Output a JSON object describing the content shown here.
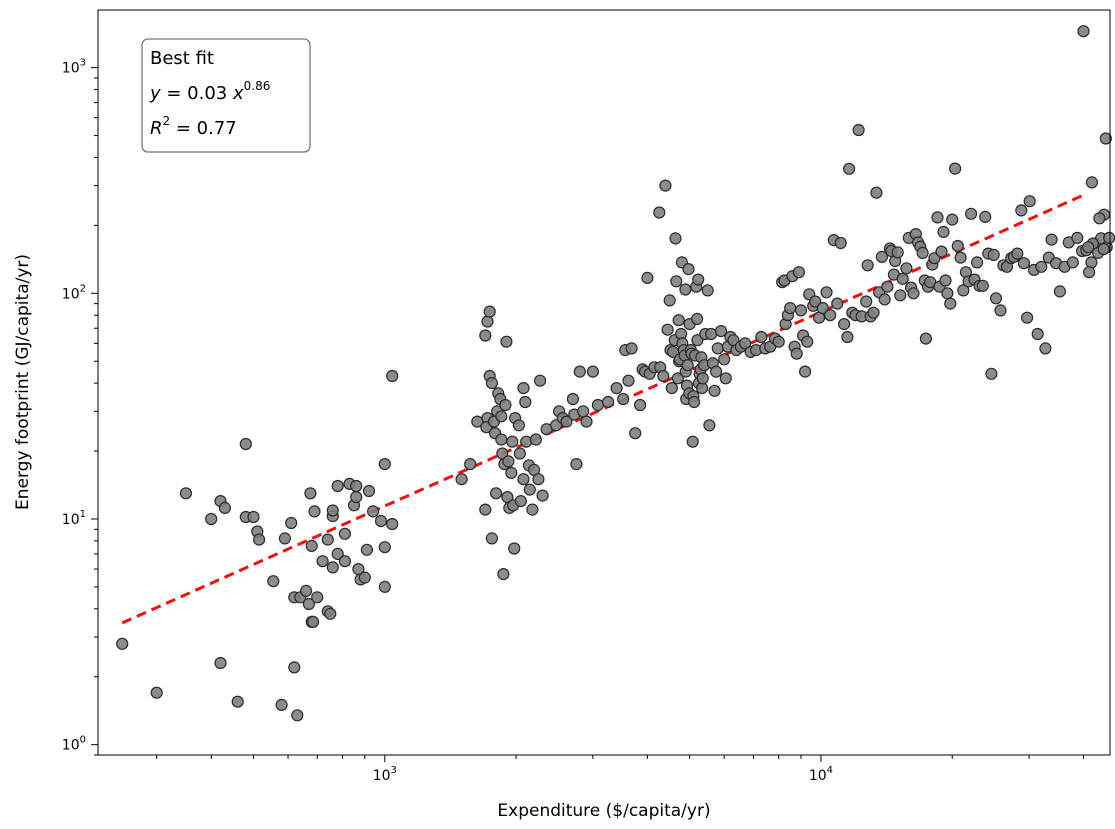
{
  "chart_data": {
    "type": "scatter",
    "xlabel": "Expenditure ($/capita/yr)",
    "ylabel": "Energy footprint (GJ/capita/yr)",
    "xscale": "log",
    "yscale": "log",
    "xlim": [
      220,
      46000
    ],
    "ylim": [
      0.9,
      1800
    ],
    "x_ticks": [
      {
        "value": 1000,
        "base": "10",
        "exp": "3"
      },
      {
        "value": 10000,
        "base": "10",
        "exp": "4"
      }
    ],
    "y_ticks": [
      {
        "value": 1,
        "base": "10",
        "exp": "0"
      },
      {
        "value": 10,
        "base": "10",
        "exp": "1"
      },
      {
        "value": 100,
        "base": "10",
        "exp": "2"
      },
      {
        "value": 1000,
        "base": "10",
        "exp": "3"
      }
    ],
    "grid": false,
    "marker_color": "#808080",
    "marker_edge_color": "#2b2b2b",
    "fit_color": "#ee1111",
    "annotation": {
      "line1": "Best fit",
      "eq_y": "y",
      "eq_eq": " = 0.03 ",
      "eq_x": "x",
      "eq_exp": "0.86",
      "r2_r": "R",
      "r2_exp": "2",
      "r2_val": " = 0.77"
    },
    "fit": {
      "coefficient": 0.03,
      "exponent": 0.86,
      "x_range": [
        250,
        40000
      ]
    },
    "points": [
      [
        250,
        2.8
      ],
      [
        300,
        1.7
      ],
      [
        350,
        13
      ],
      [
        400,
        10
      ],
      [
        420,
        12
      ],
      [
        430,
        11.2
      ],
      [
        420,
        2.3
      ],
      [
        460,
        1.55
      ],
      [
        480,
        10.2
      ],
      [
        500,
        10.2
      ],
      [
        510,
        8.8
      ],
      [
        515,
        8.1
      ],
      [
        480,
        21.5
      ],
      [
        555,
        5.3
      ],
      [
        590,
        8.2
      ],
      [
        610,
        9.6
      ],
      [
        620,
        4.5
      ],
      [
        640,
        4.5
      ],
      [
        620,
        2.2
      ],
      [
        580,
        1.5
      ],
      [
        630,
        1.35
      ],
      [
        660,
        4.8
      ],
      [
        670,
        4.2
      ],
      [
        680,
        3.5
      ],
      [
        685,
        3.5
      ],
      [
        700,
        4.5
      ],
      [
        675,
        13
      ],
      [
        690,
        10.8
      ],
      [
        680,
        7.6
      ],
      [
        720,
        6.5
      ],
      [
        740,
        8.1
      ],
      [
        740,
        3.9
      ],
      [
        750,
        3.8
      ],
      [
        760,
        6.1
      ],
      [
        780,
        7
      ],
      [
        760,
        10.3
      ],
      [
        760,
        10.9
      ],
      [
        780,
        14
      ],
      [
        810,
        6.5
      ],
      [
        810,
        8.6
      ],
      [
        830,
        14.3
      ],
      [
        860,
        14
      ],
      [
        850,
        11.5
      ],
      [
        870,
        6
      ],
      [
        860,
        12.5
      ],
      [
        880,
        5.4
      ],
      [
        900,
        5.5
      ],
      [
        910,
        7.3
      ],
      [
        920,
        13.3
      ],
      [
        940,
        10.8
      ],
      [
        980,
        9.8
      ],
      [
        1000,
        17.5
      ],
      [
        1000,
        7.5
      ],
      [
        1000,
        5
      ],
      [
        1040,
        9.5
      ],
      [
        1040,
        43
      ],
      [
        1500,
        15
      ],
      [
        1570,
        17.5
      ],
      [
        1630,
        27
      ],
      [
        1700,
        65
      ],
      [
        1720,
        75
      ],
      [
        1740,
        83
      ],
      [
        1720,
        28
      ],
      [
        1710,
        25.5
      ],
      [
        1700,
        11
      ],
      [
        1740,
        43
      ],
      [
        1760,
        40
      ],
      [
        1760,
        8.2
      ],
      [
        1780,
        27
      ],
      [
        1790,
        24
      ],
      [
        1800,
        13
      ],
      [
        1810,
        30
      ],
      [
        1820,
        36
      ],
      [
        1840,
        34
      ],
      [
        1850,
        28.5
      ],
      [
        1860,
        19.5
      ],
      [
        1850,
        22.5
      ],
      [
        1880,
        17.5
      ],
      [
        1870,
        5.7
      ],
      [
        1890,
        32
      ],
      [
        1900,
        61
      ],
      [
        1910,
        12.5
      ],
      [
        1920,
        18
      ],
      [
        1930,
        11.2
      ],
      [
        1950,
        16
      ],
      [
        1960,
        22
      ],
      [
        1970,
        11.5
      ],
      [
        1980,
        7.4
      ],
      [
        1990,
        28
      ],
      [
        2030,
        26
      ],
      [
        2040,
        19.5
      ],
      [
        2050,
        12
      ],
      [
        2080,
        38
      ],
      [
        2080,
        15
      ],
      [
        2100,
        33
      ],
      [
        2110,
        22
      ],
      [
        2140,
        17.3
      ],
      [
        2150,
        13.5
      ],
      [
        2180,
        11
      ],
      [
        2200,
        16.5
      ],
      [
        2220,
        22.5
      ],
      [
        2250,
        15
      ],
      [
        2270,
        41
      ],
      [
        2300,
        12.7
      ],
      [
        2350,
        25
      ],
      [
        2470,
        26
      ],
      [
        2510,
        30
      ],
      [
        2560,
        28
      ],
      [
        2610,
        27
      ],
      [
        2700,
        34
      ],
      [
        2720,
        29
      ],
      [
        2750,
        17.5
      ],
      [
        2800,
        45
      ],
      [
        2850,
        30
      ],
      [
        2900,
        27
      ],
      [
        3000,
        45
      ],
      [
        3080,
        32
      ],
      [
        3250,
        33
      ],
      [
        3400,
        38
      ],
      [
        3520,
        34
      ],
      [
        3560,
        56
      ],
      [
        3620,
        41
      ],
      [
        3680,
        57
      ],
      [
        3750,
        24
      ],
      [
        3850,
        32
      ],
      [
        3900,
        46
      ],
      [
        3950,
        45
      ],
      [
        4000,
        117
      ],
      [
        4050,
        44
      ],
      [
        4150,
        47
      ],
      [
        4260,
        228
      ],
      [
        4280,
        47
      ],
      [
        4350,
        43
      ],
      [
        4400,
        300
      ],
      [
        4450,
        69
      ],
      [
        4500,
        93
      ],
      [
        4520,
        56
      ],
      [
        4550,
        38
      ],
      [
        4580,
        55
      ],
      [
        4620,
        62
      ],
      [
        4640,
        175
      ],
      [
        4660,
        113
      ],
      [
        4700,
        42
      ],
      [
        4720,
        76
      ],
      [
        4730,
        50
      ],
      [
        4750,
        51
      ],
      [
        4780,
        66
      ],
      [
        4800,
        137
      ],
      [
        4810,
        60
      ],
      [
        4850,
        56
      ],
      [
        4870,
        53
      ],
      [
        4890,
        104
      ],
      [
        4900,
        45
      ],
      [
        4910,
        34
      ],
      [
        4930,
        39
      ],
      [
        4950,
        48
      ],
      [
        4970,
        128
      ],
      [
        4990,
        36
      ],
      [
        5000,
        73
      ],
      [
        5030,
        56
      ],
      [
        5050,
        54
      ],
      [
        5080,
        22
      ],
      [
        5100,
        35
      ],
      [
        5120,
        33
      ],
      [
        5150,
        53
      ],
      [
        5180,
        107
      ],
      [
        5200,
        77
      ],
      [
        5210,
        62
      ],
      [
        5230,
        115
      ],
      [
        5250,
        40
      ],
      [
        5270,
        44
      ],
      [
        5300,
        46
      ],
      [
        5320,
        52
      ],
      [
        5340,
        38
      ],
      [
        5360,
        42
      ],
      [
        5400,
        48
      ],
      [
        5430,
        66
      ],
      [
        5500,
        103
      ],
      [
        5550,
        26
      ],
      [
        5600,
        66
      ],
      [
        5650,
        49
      ],
      [
        5700,
        37
      ],
      [
        5750,
        45
      ],
      [
        5800,
        57
      ],
      [
        5900,
        68
      ],
      [
        6000,
        51
      ],
      [
        6050,
        42
      ],
      [
        6120,
        58
      ],
      [
        6200,
        64
      ],
      [
        6300,
        62
      ],
      [
        6400,
        56
      ],
      [
        6550,
        58
      ],
      [
        6700,
        60
      ],
      [
        6900,
        55
      ],
      [
        7100,
        56
      ],
      [
        7300,
        64
      ],
      [
        7450,
        57
      ],
      [
        7650,
        58
      ],
      [
        7850,
        63
      ],
      [
        8000,
        61
      ],
      [
        8150,
        112
      ],
      [
        8250,
        114
      ],
      [
        8300,
        73
      ],
      [
        8400,
        80
      ],
      [
        8500,
        86
      ],
      [
        8600,
        119
      ],
      [
        8700,
        58
      ],
      [
        8800,
        54
      ],
      [
        8900,
        124
      ],
      [
        9000,
        84
      ],
      [
        9100,
        65
      ],
      [
        9200,
        45
      ],
      [
        9300,
        61
      ],
      [
        9400,
        99
      ],
      [
        9600,
        88
      ],
      [
        9700,
        92
      ],
      [
        9900,
        78
      ],
      [
        10100,
        86
      ],
      [
        10300,
        101
      ],
      [
        10500,
        80
      ],
      [
        10700,
        172
      ],
      [
        10900,
        90
      ],
      [
        11100,
        167
      ],
      [
        11300,
        73
      ],
      [
        11500,
        64
      ],
      [
        11600,
        356
      ],
      [
        11800,
        82
      ],
      [
        12000,
        80
      ],
      [
        12200,
        529
      ],
      [
        12400,
        79
      ],
      [
        12700,
        92
      ],
      [
        12800,
        133
      ],
      [
        13000,
        79
      ],
      [
        13200,
        82
      ],
      [
        13400,
        279
      ],
      [
        13600,
        101
      ],
      [
        13800,
        145
      ],
      [
        14000,
        94
      ],
      [
        14200,
        107
      ],
      [
        14400,
        158
      ],
      [
        14500,
        154
      ],
      [
        14700,
        121
      ],
      [
        14800,
        139
      ],
      [
        15000,
        152
      ],
      [
        15200,
        98
      ],
      [
        15400,
        116
      ],
      [
        15700,
        129
      ],
      [
        15900,
        176
      ],
      [
        16100,
        106
      ],
      [
        16300,
        100
      ],
      [
        16500,
        183
      ],
      [
        16700,
        168
      ],
      [
        16900,
        161
      ],
      [
        17100,
        151
      ],
      [
        17300,
        114
      ],
      [
        17400,
        63
      ],
      [
        17600,
        107
      ],
      [
        17800,
        112
      ],
      [
        18000,
        134
      ],
      [
        18200,
        143
      ],
      [
        18500,
        217
      ],
      [
        18700,
        107
      ],
      [
        18900,
        153
      ],
      [
        19100,
        187
      ],
      [
        19300,
        114
      ],
      [
        19500,
        100
      ],
      [
        19800,
        90
      ],
      [
        20000,
        212
      ],
      [
        20300,
        357
      ],
      [
        20600,
        162
      ],
      [
        20900,
        144
      ],
      [
        21200,
        103
      ],
      [
        21500,
        124
      ],
      [
        21800,
        113
      ],
      [
        22100,
        225
      ],
      [
        22500,
        115
      ],
      [
        22800,
        137
      ],
      [
        23100,
        108
      ],
      [
        23500,
        108
      ],
      [
        23800,
        218
      ],
      [
        24200,
        150
      ],
      [
        24600,
        44
      ],
      [
        24900,
        148
      ],
      [
        25200,
        95
      ],
      [
        25800,
        84
      ],
      [
        26200,
        133
      ],
      [
        26700,
        131
      ],
      [
        27300,
        143
      ],
      [
        27700,
        145
      ],
      [
        28200,
        150
      ],
      [
        28800,
        233
      ],
      [
        29200,
        136
      ],
      [
        29700,
        78
      ],
      [
        30100,
        256
      ],
      [
        30800,
        127
      ],
      [
        31400,
        66
      ],
      [
        32000,
        131
      ],
      [
        32700,
        57
      ],
      [
        33300,
        144
      ],
      [
        33800,
        173
      ],
      [
        34600,
        136
      ],
      [
        35300,
        102
      ],
      [
        36200,
        131
      ],
      [
        37000,
        168
      ],
      [
        37800,
        137
      ],
      [
        38700,
        176
      ],
      [
        39700,
        154
      ],
      [
        40600,
        155
      ],
      [
        41700,
        137
      ],
      [
        42500,
        166
      ],
      [
        43200,
        151
      ],
      [
        43900,
        175
      ],
      [
        44600,
        223
      ],
      [
        45200,
        160
      ],
      [
        45800,
        176
      ],
      [
        41200,
        124
      ],
      [
        42000,
        166
      ],
      [
        41000,
        160
      ],
      [
        40000,
        1450
      ],
      [
        41800,
        310
      ],
      [
        43500,
        215
      ],
      [
        44500,
        157
      ],
      [
        45000,
        485
      ]
    ]
  }
}
